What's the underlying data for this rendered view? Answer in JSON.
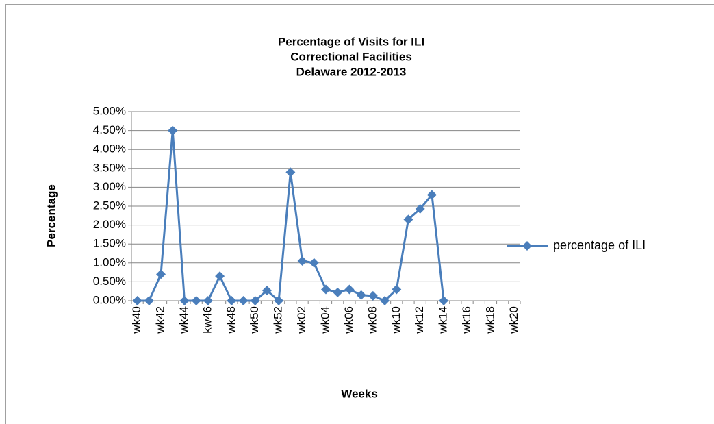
{
  "chart_data": {
    "type": "line",
    "title": [
      "Percentage of Visits for ILI",
      "Correctional Facilities",
      "Delaware 2012-2013"
    ],
    "x_label": "Weeks",
    "y_label": "Percentage",
    "categories": [
      "wk40",
      null,
      "wk42",
      null,
      "wk44",
      null,
      "kw46",
      null,
      "wk48",
      null,
      "wk50",
      null,
      "wk52",
      null,
      "wk02",
      null,
      "wk04",
      null,
      "wk06",
      null,
      "wk08",
      null,
      "wk10",
      null,
      "wk12",
      null,
      "wk14",
      null,
      "wk16",
      null,
      "wk18",
      null,
      "wk20"
    ],
    "series": [
      {
        "name": "percentage of ILI",
        "color": "#4a7ebb",
        "values": [
          0,
          0,
          0.7,
          4.5,
          0,
          0,
          0,
          0.65,
          0,
          0,
          0,
          0.27,
          0,
          3.4,
          1.05,
          1.0,
          0.3,
          0.22,
          0.3,
          0.15,
          0.13,
          0,
          0.3,
          2.15,
          2.43,
          2.8,
          0,
          null,
          null,
          null,
          null,
          null,
          null
        ]
      }
    ],
    "ylim": [
      0,
      5
    ],
    "yticks": [
      {
        "value": 0,
        "label": "0.00%"
      },
      {
        "value": 0.5,
        "label": "0.50%"
      },
      {
        "value": 1,
        "label": "1.00%"
      },
      {
        "value": 1.5,
        "label": "1.50%"
      },
      {
        "value": 2,
        "label": "2.00%"
      },
      {
        "value": 2.5,
        "label": "2.50%"
      },
      {
        "value": 3,
        "label": "3.00%"
      },
      {
        "value": 3.5,
        "label": "3.50%"
      },
      {
        "value": 4,
        "label": "4.00%"
      },
      {
        "value": 4.5,
        "label": "4.50%"
      },
      {
        "value": 5,
        "label": "5.00%"
      }
    ],
    "grid": true,
    "legend": "right"
  }
}
